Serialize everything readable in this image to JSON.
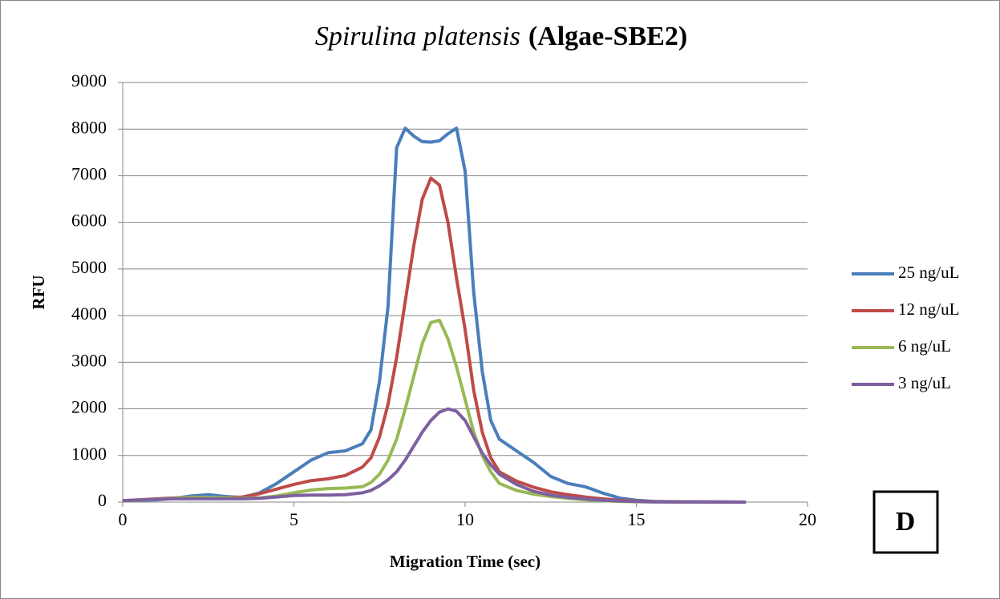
{
  "chart_data": {
    "type": "line",
    "title_parts": [
      "Spirulina platensis",
      "(Algae-SBE2)"
    ],
    "xlabel": "Migration Time (sec)",
    "ylabel": "RFU",
    "annotation": "D",
    "x": [
      0,
      0.5,
      1,
      1.5,
      2,
      2.5,
      3,
      3.5,
      4,
      4.5,
      5,
      5.5,
      6,
      6.5,
      7,
      7.25,
      7.5,
      7.75,
      8,
      8.25,
      8.5,
      8.75,
      9,
      9.25,
      9.5,
      9.75,
      10,
      10.25,
      10.5,
      10.75,
      11,
      11.5,
      12,
      12.5,
      13,
      13.5,
      14,
      14.5,
      15,
      15.5,
      16,
      17,
      18.2
    ],
    "series": [
      {
        "name": "25 ng/uL",
        "color": "#4a7ebb",
        "values": [
          30,
          40,
          50,
          80,
          130,
          160,
          120,
          100,
          200,
          400,
          650,
          900,
          1060,
          1100,
          1250,
          1550,
          2600,
          4200,
          7600,
          8020,
          7850,
          7730,
          7720,
          7750,
          7900,
          8020,
          7100,
          4500,
          2800,
          1750,
          1350,
          1100,
          850,
          550,
          400,
          330,
          200,
          90,
          40,
          15,
          10,
          5,
          0
        ]
      },
      {
        "name": "12 ng/uL",
        "color": "#be4b48",
        "values": [
          30,
          50,
          70,
          90,
          100,
          100,
          90,
          110,
          180,
          280,
          380,
          460,
          500,
          570,
          750,
          950,
          1400,
          2100,
          3100,
          4300,
          5500,
          6500,
          6950,
          6800,
          6000,
          4800,
          3700,
          2400,
          1500,
          950,
          650,
          450,
          320,
          220,
          160,
          110,
          70,
          40,
          20,
          10,
          5,
          3,
          0
        ]
      },
      {
        "name": "6 ng/uL",
        "color": "#98b954",
        "values": [
          30,
          40,
          60,
          80,
          100,
          100,
          90,
          80,
          90,
          130,
          200,
          260,
          290,
          300,
          330,
          420,
          600,
          900,
          1350,
          2000,
          2700,
          3400,
          3850,
          3900,
          3500,
          2900,
          2200,
          1500,
          1000,
          650,
          400,
          250,
          170,
          120,
          80,
          50,
          30,
          15,
          8,
          5,
          3,
          2,
          0
        ]
      },
      {
        "name": "3 ng/uL",
        "color": "#7d60a0",
        "values": [
          30,
          45,
          60,
          70,
          70,
          70,
          70,
          70,
          80,
          110,
          140,
          150,
          150,
          160,
          200,
          250,
          350,
          480,
          650,
          900,
          1200,
          1500,
          1750,
          1930,
          2000,
          1950,
          1750,
          1400,
          1050,
          800,
          600,
          380,
          230,
          150,
          100,
          70,
          40,
          25,
          12,
          5,
          3,
          1,
          0
        ]
      }
    ],
    "xlim": [
      0,
      20
    ],
    "xticks": [
      0,
      5,
      10,
      15,
      20
    ],
    "ylim": [
      0,
      9000
    ],
    "yticks": [
      0,
      1000,
      2000,
      3000,
      4000,
      5000,
      6000,
      7000,
      8000,
      9000
    ],
    "grid": true,
    "legend": "right"
  }
}
